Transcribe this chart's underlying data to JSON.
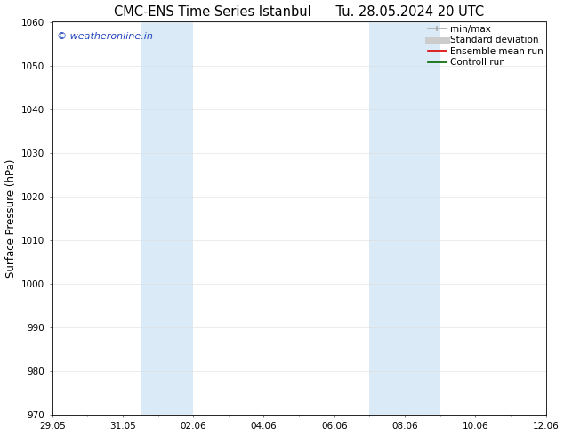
{
  "title_left": "CMC-ENS Time Series Istanbul",
  "title_right": "Tu. 28.05.2024 20 UTC",
  "ylabel": "Surface Pressure (hPa)",
  "ylim": [
    970,
    1060
  ],
  "yticks": [
    970,
    980,
    990,
    1000,
    1010,
    1020,
    1030,
    1040,
    1050,
    1060
  ],
  "xlim": [
    0,
    14
  ],
  "xtick_labels": [
    "29.05",
    "31.05",
    "02.06",
    "04.06",
    "06.06",
    "08.06",
    "10.06",
    "12.06"
  ],
  "xtick_positions": [
    0,
    2,
    4,
    6,
    8,
    10,
    12,
    14
  ],
  "shaded_regions": [
    {
      "start": 2.5,
      "end": 4.0
    },
    {
      "start": 9.0,
      "end": 11.0
    }
  ],
  "shaded_color": "#daeaf7",
  "background_color": "#ffffff",
  "watermark_text": "© weatheronline.in",
  "watermark_color": "#2244bb",
  "legend_entries": [
    {
      "label": "min/max",
      "color": "#aaaaaa",
      "lw": 1.2,
      "linestyle": "-"
    },
    {
      "label": "Standard deviation",
      "color": "#cccccc",
      "lw": 5,
      "linestyle": "-"
    },
    {
      "label": "Ensemble mean run",
      "color": "#dd0000",
      "lw": 1.2,
      "linestyle": "-"
    },
    {
      "label": "Controll run",
      "color": "#006600",
      "lw": 1.2,
      "linestyle": "-"
    }
  ],
  "title_fontsize": 10.5,
  "label_fontsize": 8.5,
  "tick_fontsize": 7.5,
  "legend_fontsize": 7.5,
  "watermark_fontsize": 8.0
}
